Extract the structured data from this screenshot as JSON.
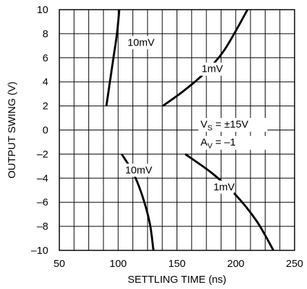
{
  "chart_data": {
    "type": "line",
    "xlabel": "SETTLING TIME (ns)",
    "ylabel": "OUTPUT SWING (V)",
    "xlim": [
      50,
      250
    ],
    "ylim": [
      -10,
      10
    ],
    "xticks": [
      50,
      100,
      150,
      200,
      250
    ],
    "yticks": [
      10,
      8,
      6,
      4,
      2,
      0,
      -2,
      -4,
      -6,
      -8,
      -10
    ],
    "xtick_labels": [
      "50",
      "100",
      "150",
      "200",
      "250"
    ],
    "ytick_labels": [
      "10",
      "8",
      "6",
      "4",
      "2",
      "0",
      "–2",
      "–4",
      "–6",
      "–8",
      "–10"
    ],
    "grid": true,
    "series": [
      {
        "name": "10mV",
        "points": [
          [
            90,
            2
          ],
          [
            93,
            4
          ],
          [
            96,
            6
          ],
          [
            99,
            8
          ],
          [
            101,
            10
          ]
        ]
      },
      {
        "name": "1mV",
        "points": [
          [
            138,
            2
          ],
          [
            155,
            3.2
          ],
          [
            172,
            4.6
          ],
          [
            190,
            6.6
          ],
          [
            210,
            10
          ]
        ]
      },
      {
        "name": "10mV",
        "points": [
          [
            103,
            -2
          ],
          [
            113,
            -3.6
          ],
          [
            121,
            -5.6
          ],
          [
            127,
            -7.8
          ],
          [
            130,
            -10
          ]
        ]
      },
      {
        "name": "1mV",
        "points": [
          [
            157,
            -2
          ],
          [
            180,
            -3.6
          ],
          [
            200,
            -5.4
          ],
          [
            218,
            -7.6
          ],
          [
            232,
            -10
          ]
        ]
      }
    ],
    "annotations": {
      "curve_labels": [
        {
          "text": "10mV",
          "x": 108,
          "y": 7.0
        },
        {
          "text": "1mV",
          "x": 171,
          "y": 4.8
        },
        {
          "text": "10mV",
          "x": 106,
          "y": -3.6
        },
        {
          "text": "1mV",
          "x": 181,
          "y": -5.0
        }
      ],
      "conditions": [
        {
          "main": "V",
          "sub": "S",
          "rest": " = ±15V",
          "x": 170,
          "y": 0.2
        },
        {
          "main": "A",
          "sub": "V",
          "rest": " = –1",
          "x": 170,
          "y": -1.3
        }
      ]
    }
  }
}
